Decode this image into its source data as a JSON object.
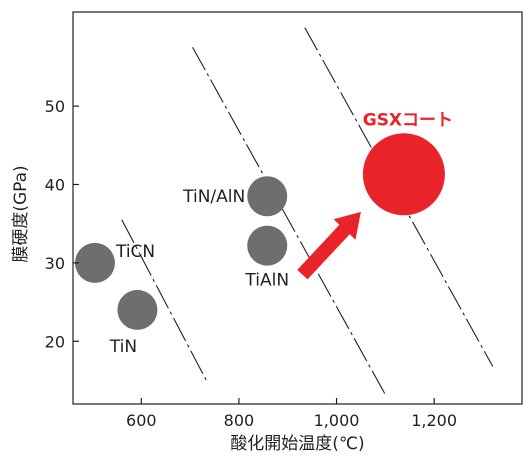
{
  "chart_data": {
    "type": "scatter",
    "xlabel": "酸化開始温度(℃)",
    "ylabel": "膜硬度(GPa)",
    "xlim": [
      460,
      1380
    ],
    "ylim": [
      12,
      62
    ],
    "x_ticks": [
      {
        "value": 600,
        "label": "600"
      },
      {
        "value": 800,
        "label": "800"
      },
      {
        "value": 1000,
        "label": "1,000"
      },
      {
        "value": 1200,
        "label": "1,200"
      }
    ],
    "y_ticks": [
      {
        "value": 20,
        "label": "20"
      },
      {
        "value": 30,
        "label": "30"
      },
      {
        "value": 40,
        "label": "40"
      },
      {
        "value": 50,
        "label": "50"
      }
    ],
    "points": [
      {
        "name": "TiCN",
        "label": "TiCN",
        "x": 505,
        "y": 30,
        "size": 1,
        "color": "#6d6e70",
        "label_pos": "right"
      },
      {
        "name": "TiN",
        "label": "TiN",
        "x": 592,
        "y": 24,
        "size": 1,
        "color": "#6d6e70",
        "label_pos": "below-left"
      },
      {
        "name": "TiN-AlN",
        "label": "TiN/AlN",
        "x": 858,
        "y": 38.5,
        "size": 1,
        "color": "#6d6e70",
        "label_pos": "left"
      },
      {
        "name": "TiAlN",
        "label": "TiAlN",
        "x": 858,
        "y": 32.2,
        "size": 1,
        "color": "#6d6e70",
        "label_pos": "below"
      },
      {
        "name": "GSX",
        "label": "GSXコート",
        "x": 1138,
        "y": 41.3,
        "size": 2.05,
        "color": "#e8232a",
        "label_pos": "above"
      }
    ],
    "trend_lines": [
      {
        "x1": 560,
        "y1": 35.5,
        "x2": 735,
        "y2": 14.8
      },
      {
        "x1": 705,
        "y1": 57.5,
        "x2": 1100,
        "y2": 13.2
      },
      {
        "x1": 935,
        "y1": 60,
        "x2": 1320,
        "y2": 16.8
      }
    ],
    "arrow": {
      "from": {
        "x": 930,
        "y": 28.5
      },
      "to": {
        "x": 1050,
        "y": 36.5
      },
      "color": "#e8232a"
    },
    "grid": false,
    "legend": "none"
  }
}
